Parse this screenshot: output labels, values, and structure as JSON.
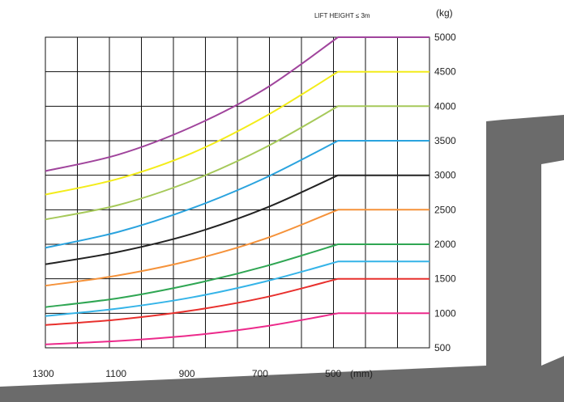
{
  "chart_data": {
    "type": "line",
    "title": "LIFT HEIGHT ≤ 3m",
    "xlabel": "(mm)",
    "ylabel": "(kg)",
    "x_ticks": [
      1300,
      1100,
      900,
      700,
      500
    ],
    "y_ticks": [
      500,
      1000,
      1500,
      2000,
      2500,
      3000,
      3500,
      4000,
      4500,
      5000
    ],
    "xlim": [
      1300,
      250
    ],
    "ylim": [
      500,
      5000
    ],
    "grid": true,
    "series": [
      {
        "color": "#a0449c",
        "points": [
          [
            1300,
            3060
          ],
          [
            1100,
            3300
          ],
          [
            900,
            3700
          ],
          [
            700,
            4250
          ],
          [
            500,
            5000
          ],
          [
            250,
            5000
          ]
        ]
      },
      {
        "color": "#f3ec1a",
        "points": [
          [
            1300,
            2720
          ],
          [
            1100,
            2950
          ],
          [
            900,
            3320
          ],
          [
            700,
            3850
          ],
          [
            500,
            4500
          ],
          [
            250,
            4500
          ]
        ]
      },
      {
        "color": "#a6c95a",
        "points": [
          [
            1300,
            2360
          ],
          [
            1100,
            2570
          ],
          [
            900,
            2920
          ],
          [
            700,
            3400
          ],
          [
            500,
            4000
          ],
          [
            250,
            4000
          ]
        ]
      },
      {
        "color": "#2aa3de",
        "points": [
          [
            1300,
            1950
          ],
          [
            1100,
            2180
          ],
          [
            900,
            2520
          ],
          [
            700,
            2960
          ],
          [
            500,
            3500
          ],
          [
            250,
            3500
          ]
        ]
      },
      {
        "color": "#222222",
        "points": [
          [
            1300,
            1710
          ],
          [
            1100,
            1890
          ],
          [
            900,
            2150
          ],
          [
            700,
            2520
          ],
          [
            500,
            3000
          ],
          [
            250,
            3000
          ]
        ]
      },
      {
        "color": "#f5923a",
        "points": [
          [
            1300,
            1400
          ],
          [
            1100,
            1550
          ],
          [
            900,
            1770
          ],
          [
            700,
            2080
          ],
          [
            500,
            2500
          ],
          [
            250,
            2500
          ]
        ]
      },
      {
        "color": "#2fa653",
        "points": [
          [
            1300,
            1090
          ],
          [
            1100,
            1220
          ],
          [
            900,
            1420
          ],
          [
            700,
            1680
          ],
          [
            500,
            2000
          ],
          [
            250,
            2000
          ]
        ]
      },
      {
        "color": "#35b4e8",
        "points": [
          [
            1300,
            960
          ],
          [
            1100,
            1070
          ],
          [
            900,
            1230
          ],
          [
            700,
            1460
          ],
          [
            500,
            1750
          ],
          [
            250,
            1750
          ]
        ]
      },
      {
        "color": "#e8302d",
        "points": [
          [
            1300,
            830
          ],
          [
            1100,
            910
          ],
          [
            900,
            1040
          ],
          [
            700,
            1230
          ],
          [
            500,
            1500
          ],
          [
            250,
            1500
          ]
        ]
      },
      {
        "color": "#ec2a8b",
        "points": [
          [
            1300,
            550
          ],
          [
            1100,
            600
          ],
          [
            900,
            680
          ],
          [
            700,
            810
          ],
          [
            500,
            1000
          ],
          [
            250,
            1000
          ]
        ]
      }
    ]
  }
}
